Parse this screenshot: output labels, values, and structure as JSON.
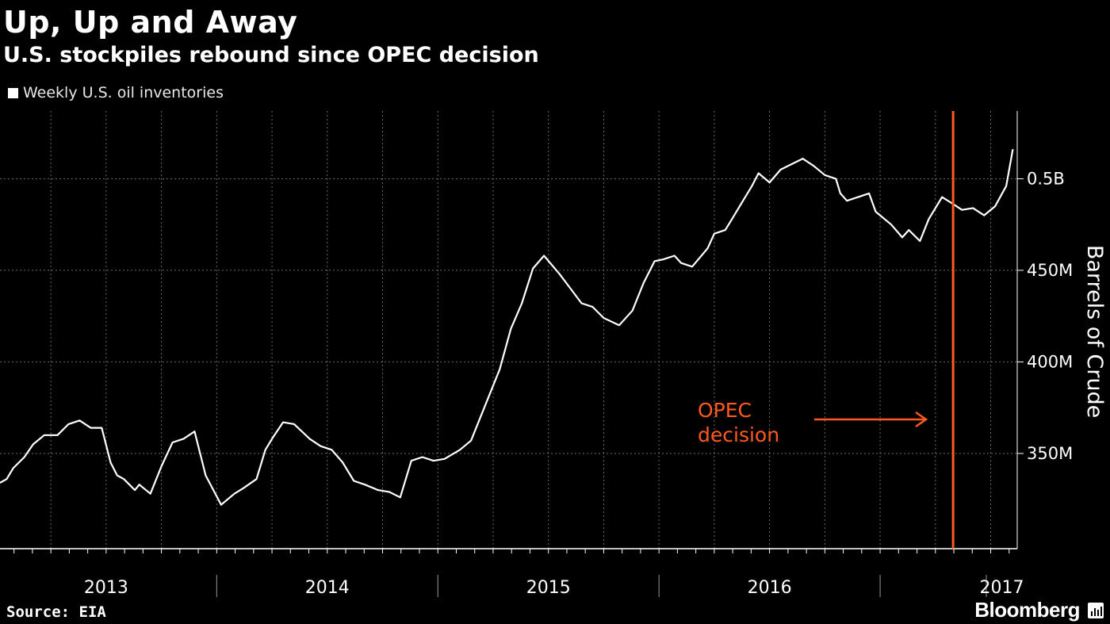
{
  "chart_data": {
    "type": "line",
    "title": "Up, Up and Away",
    "subtitle": "U.S. stockpiles rebound since OPEC decision",
    "legend": "Weekly U.S. oil inventories",
    "ylabel": "Barrels of Crude",
    "ylim": [
      298,
      537
    ],
    "xlim": [
      2012.52,
      2017.12
    ],
    "yticks": [
      {
        "value": 350,
        "label": "350M"
      },
      {
        "value": 400,
        "label": "400M"
      },
      {
        "value": 450,
        "label": "450M"
      },
      {
        "value": 500,
        "label": "0.5B"
      }
    ],
    "xcategories": [
      {
        "label": "2013",
        "center": 2013.0
      },
      {
        "label": "2014",
        "center": 2014.0
      },
      {
        "label": "2015",
        "center": 2015.0
      },
      {
        "label": "2016",
        "center": 2016.0
      },
      {
        "label": "2017",
        "center": 2017.05
      }
    ],
    "year_separators": [
      2013.5,
      2014.5,
      2015.5,
      2016.5
    ],
    "grid": true,
    "annotation": {
      "line1": "OPEC",
      "line2": "decision",
      "x": 2016.83,
      "color": "#ff5a1f"
    },
    "series": [
      {
        "name": "Weekly U.S. oil inventories",
        "color": "#ffffff",
        "x": [
          2012.52,
          2012.55,
          2012.58,
          2012.63,
          2012.67,
          2012.72,
          2012.78,
          2012.83,
          2012.88,
          2012.93,
          2012.98,
          2013.02,
          2013.05,
          2013.08,
          2013.13,
          2013.15,
          2013.2,
          2013.25,
          2013.3,
          2013.35,
          2013.4,
          2013.45,
          2013.52,
          2013.58,
          2013.62,
          2013.68,
          2013.72,
          2013.75,
          2013.8,
          2013.85,
          2013.92,
          2013.97,
          2014.02,
          2014.07,
          2014.12,
          2014.17,
          2014.23,
          2014.28,
          2014.33,
          2014.38,
          2014.43,
          2014.48,
          2014.53,
          2014.6,
          2014.65,
          2014.72,
          2014.78,
          2014.83,
          2014.88,
          2014.93,
          2014.98,
          2015.05,
          2015.1,
          2015.15,
          2015.2,
          2015.25,
          2015.32,
          2015.38,
          2015.43,
          2015.48,
          2015.52,
          2015.57,
          2015.6,
          2015.65,
          2015.72,
          2015.75,
          2015.8,
          2015.83,
          2015.88,
          2015.92,
          2015.95,
          2016.0,
          2016.05,
          2016.1,
          2016.15,
          2016.2,
          2016.25,
          2016.3,
          2016.32,
          2016.35,
          2016.4,
          2016.45,
          2016.48,
          2016.55,
          2016.6,
          2016.63,
          2016.68,
          2016.72,
          2016.78,
          2016.82,
          2016.87,
          2016.92,
          2016.97,
          2017.02,
          2017.07,
          2017.1
        ],
        "values": [
          334,
          336,
          342,
          348,
          355,
          360,
          360,
          366,
          368,
          364,
          364,
          345,
          338,
          336,
          330,
          333,
          328,
          343,
          356,
          358,
          362,
          338,
          322,
          328,
          331,
          336,
          352,
          358,
          367,
          366,
          358,
          354,
          352,
          345,
          335,
          333,
          330,
          329,
          326,
          346,
          348,
          346,
          347,
          352,
          357,
          378,
          396,
          418,
          432,
          451,
          458,
          448,
          440,
          432,
          430,
          424,
          420,
          428,
          443,
          455,
          456,
          458,
          454,
          452,
          462,
          470,
          472,
          478,
          488,
          496,
          503,
          498,
          505,
          508,
          511,
          507,
          502,
          500,
          492,
          488,
          490,
          492,
          482,
          475,
          468,
          472,
          466,
          478,
          490,
          487,
          483,
          484,
          480,
          485,
          496,
          516
        ]
      }
    ]
  },
  "footer": {
    "source": "Source: EIA",
    "brand": "Bloomberg"
  }
}
